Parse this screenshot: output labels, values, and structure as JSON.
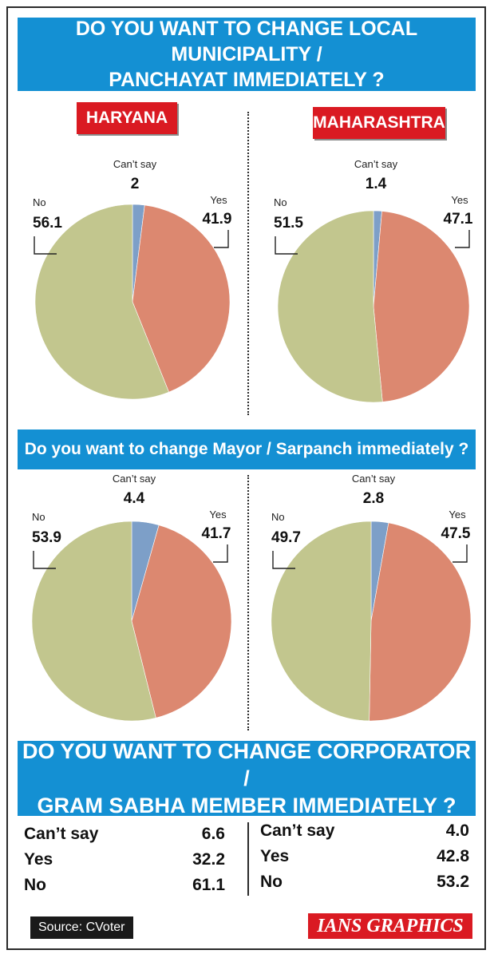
{
  "colors": {
    "banner": "#1490d3",
    "state_tag": "#da1a22",
    "yes": "#dc8870",
    "no": "#c2c68e",
    "cant_say": "#7d9fc8"
  },
  "q1": {
    "line1": "DO YOU WANT TO CHANGE LOCAL MUNICIPALITY /",
    "line2": "PANCHAYAT IMMEDIATELY ?"
  },
  "q2": {
    "title": "Do you want to change Mayor / Sarpanch immediately ?"
  },
  "q3": {
    "line1": "DO YOU WANT TO CHANGE CORPORATOR /",
    "line2": "GRAM SABHA MEMBER IMMEDIATELY ?"
  },
  "states": {
    "haryana": "HARYANA",
    "maharashtra": "MAHARASHTRA"
  },
  "chart_data": [
    {
      "type": "pie",
      "question": "DO YOU WANT TO CHANGE LOCAL MUNICIPALITY / PANCHAYAT IMMEDIATELY ?",
      "state": "HARYANA",
      "slices": [
        {
          "label": "Can't say",
          "value": 2
        },
        {
          "label": "Yes",
          "value": 41.9
        },
        {
          "label": "No",
          "value": 56.1
        }
      ]
    },
    {
      "type": "pie",
      "question": "DO YOU WANT TO CHANGE LOCAL MUNICIPALITY / PANCHAYAT IMMEDIATELY ?",
      "state": "MAHARASHTRA",
      "slices": [
        {
          "label": "Can't say",
          "value": 1.4
        },
        {
          "label": "Yes",
          "value": 47.1
        },
        {
          "label": "No",
          "value": 51.5
        }
      ]
    },
    {
      "type": "pie",
      "question": "Do you want to change Mayor / Sarpanch immediately ?",
      "state": "HARYANA",
      "slices": [
        {
          "label": "Can't say",
          "value": 4.4
        },
        {
          "label": "Yes",
          "value": 41.7
        },
        {
          "label": "No",
          "value": 53.9
        }
      ]
    },
    {
      "type": "pie",
      "question": "Do you want to change Mayor / Sarpanch immediately ?",
      "state": "MAHARASHTRA",
      "slices": [
        {
          "label": "Can't say",
          "value": 2.8
        },
        {
          "label": "Yes",
          "value": 47.5
        },
        {
          "label": "No",
          "value": 49.7
        }
      ]
    },
    {
      "type": "table",
      "question": "DO YOU WANT TO CHANGE CORPORATOR / GRAM SABHA MEMBER IMMEDIATELY ?",
      "state": "HARYANA",
      "rows": [
        {
          "label": "Can’t say",
          "value": "6.6"
        },
        {
          "label": "Yes",
          "value": "32.2"
        },
        {
          "label": "No",
          "value": "61.1"
        }
      ]
    },
    {
      "type": "table",
      "question": "DO YOU WANT TO CHANGE CORPORATOR / GRAM SABHA MEMBER IMMEDIATELY ?",
      "state": "MAHARASHTRA",
      "rows": [
        {
          "label": "Can’t say",
          "value": "4.0"
        },
        {
          "label": "Yes",
          "value": "42.8"
        },
        {
          "label": "No",
          "value": "53.2"
        }
      ]
    }
  ],
  "pie_labels": {
    "cant_say": "Can’t say",
    "yes": "Yes",
    "no": "No"
  },
  "pie_values": [
    {
      "cant_say": "2",
      "yes": "41.9",
      "no": "56.1"
    },
    {
      "cant_say": "1.4",
      "yes": "47.1",
      "no": "51.5"
    },
    {
      "cant_say": "4.4",
      "yes": "41.7",
      "no": "53.9"
    },
    {
      "cant_say": "2.8",
      "yes": "47.5",
      "no": "49.7"
    }
  ],
  "source": "Source: CVoter",
  "credit": "IANS GRAPHICS"
}
